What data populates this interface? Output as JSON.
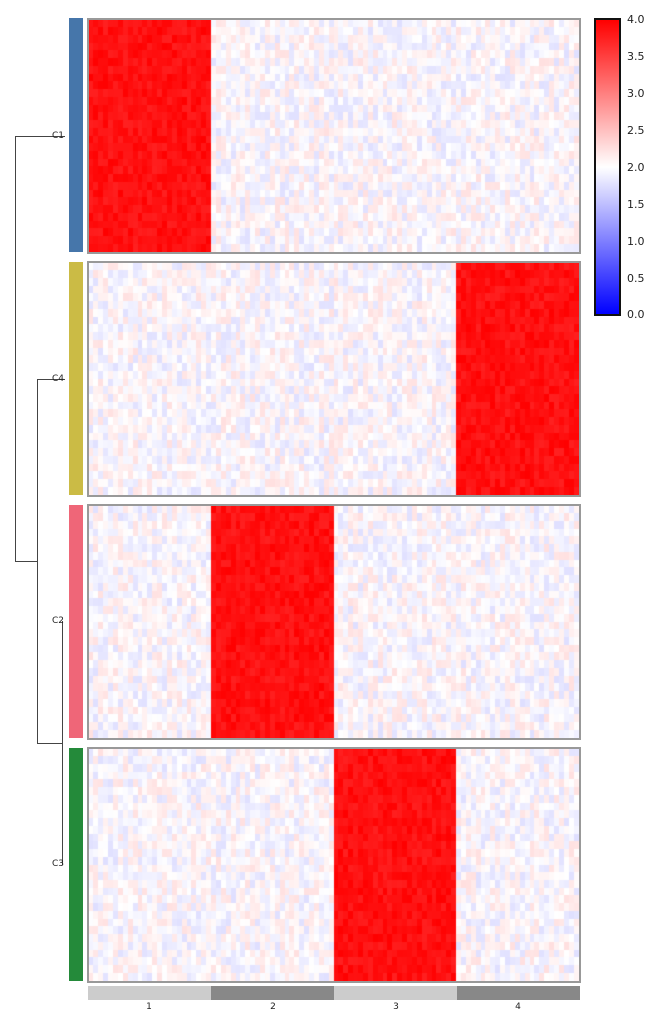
{
  "chart_data": {
    "type": "heatmap",
    "title": "",
    "row_clusters": [
      {
        "name": "C1",
        "color": "#4676aa",
        "high_column_group": "1"
      },
      {
        "name": "C4",
        "color": "#cbbb45",
        "high_column_group": "4"
      },
      {
        "name": "C2",
        "color": "#ef6678",
        "high_column_group": "2"
      },
      {
        "name": "C3",
        "color": "#248a3a",
        "high_column_group": "3"
      }
    ],
    "column_groups": [
      {
        "label": "1",
        "color": "#cccccc"
      },
      {
        "label": "2",
        "color": "#888888"
      },
      {
        "label": "3",
        "color": "#cccccc"
      },
      {
        "label": "4",
        "color": "#888888"
      }
    ],
    "values_description": "Block-diagonal pattern: cells in a cluster's matching column group ~4.0 (red); all other cells ~2.0 with small noise (near white)",
    "high_value": 4.0,
    "background_value": 2.0,
    "colorbar": {
      "min": 0.0,
      "max": 4.0,
      "center": 2.0,
      "ticks": [
        "4.0",
        "3.5",
        "3.0",
        "2.5",
        "2.0",
        "1.5",
        "1.0",
        "0.5",
        "0.0"
      ],
      "colors": {
        "low": "#0000ff",
        "mid": "#ffffff",
        "high": "#ff0000"
      }
    },
    "dendrogram": {
      "orientation": "left",
      "order": [
        "C1",
        "C4",
        "C2",
        "C3"
      ],
      "merges": [
        [
          "C2",
          "C3"
        ],
        [
          "C4",
          "C2+C3"
        ],
        [
          "C1",
          "C4+C2+C3"
        ]
      ]
    },
    "legend_position": "right",
    "grid": false
  },
  "labels": {
    "rows": [
      "C1",
      "C4",
      "C2",
      "C3"
    ],
    "cols": [
      "1",
      "2",
      "3",
      "4"
    ],
    "ticks": [
      "4.0",
      "3.5",
      "3.0",
      "2.5",
      "2.0",
      "1.5",
      "1.0",
      "0.5",
      "0.0"
    ]
  }
}
